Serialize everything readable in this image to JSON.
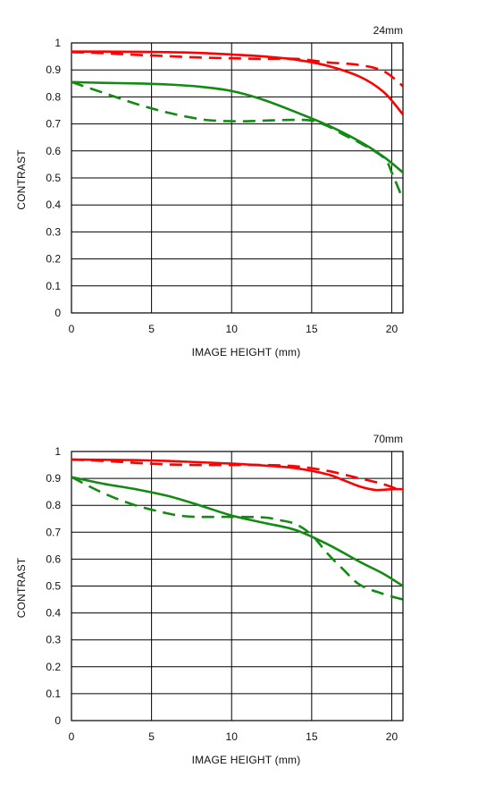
{
  "colors": {
    "sagittal_or_primary": "#ff0000",
    "secondary": "#138a13",
    "grid": "#000000"
  },
  "chart_data": [
    {
      "type": "line",
      "title": "24mm",
      "xlabel": "IMAGE HEIGHT (mm)",
      "ylabel": "CONTRAST",
      "xlim": [
        0,
        20.7
      ],
      "ylim": [
        0,
        1
      ],
      "xticks": [
        0,
        5,
        10,
        15,
        20
      ],
      "yticks": [
        0,
        0.1,
        0.2,
        0.3,
        0.4,
        0.5,
        0.6,
        0.7,
        0.8,
        0.9,
        1
      ],
      "grid": true,
      "series": [
        {
          "color": "#ff0000",
          "style": "solid",
          "x": [
            0,
            2,
            4,
            6,
            8,
            10,
            12,
            14,
            16,
            18,
            19.5,
            20.7
          ],
          "y": [
            0.968,
            0.968,
            0.967,
            0.966,
            0.963,
            0.957,
            0.95,
            0.938,
            0.915,
            0.875,
            0.818,
            0.735
          ]
        },
        {
          "color": "#ff0000",
          "style": "dashed",
          "x": [
            0,
            2,
            4,
            6,
            8,
            10,
            12,
            14,
            16,
            18,
            19.5,
            20.7
          ],
          "y": [
            0.966,
            0.962,
            0.956,
            0.951,
            0.946,
            0.943,
            0.941,
            0.941,
            0.928,
            0.918,
            0.895,
            0.84
          ]
        },
        {
          "color": "#138a13",
          "style": "solid",
          "x": [
            0,
            2,
            4,
            6,
            8,
            10,
            12,
            14,
            16,
            18,
            19.5,
            20.7
          ],
          "y": [
            0.855,
            0.852,
            0.85,
            0.846,
            0.838,
            0.822,
            0.789,
            0.744,
            0.695,
            0.635,
            0.578,
            0.52
          ]
        },
        {
          "color": "#138a13",
          "style": "dashed",
          "x": [
            0,
            2,
            4,
            6,
            8,
            9,
            10,
            11,
            12,
            13,
            14,
            15,
            16,
            17,
            18,
            19.5,
            20,
            20.7
          ],
          "y": [
            0.855,
            0.815,
            0.775,
            0.742,
            0.718,
            0.712,
            0.71,
            0.71,
            0.712,
            0.714,
            0.715,
            0.712,
            0.692,
            0.66,
            0.63,
            0.575,
            0.52,
            0.42
          ]
        }
      ]
    },
    {
      "type": "line",
      "title": "70mm",
      "xlabel": "IMAGE HEIGHT (mm)",
      "ylabel": "CONTRAST",
      "xlim": [
        0,
        20.7
      ],
      "ylim": [
        0,
        1
      ],
      "xticks": [
        0,
        5,
        10,
        15,
        20
      ],
      "yticks": [
        0,
        0.1,
        0.2,
        0.3,
        0.4,
        0.5,
        0.6,
        0.7,
        0.8,
        0.9,
        1
      ],
      "grid": true,
      "series": [
        {
          "color": "#ff0000",
          "style": "solid",
          "x": [
            0,
            2,
            4,
            6,
            8,
            10,
            12,
            14,
            16,
            17,
            18,
            19,
            20,
            20.7
          ],
          "y": [
            0.97,
            0.969,
            0.968,
            0.965,
            0.96,
            0.955,
            0.948,
            0.938,
            0.915,
            0.893,
            0.87,
            0.857,
            0.86,
            0.86
          ]
        },
        {
          "color": "#ff0000",
          "style": "dashed",
          "x": [
            0,
            2,
            4,
            6,
            8,
            10,
            12,
            14,
            16,
            18,
            19.5,
            20.7
          ],
          "y": [
            0.97,
            0.965,
            0.958,
            0.952,
            0.95,
            0.95,
            0.95,
            0.945,
            0.928,
            0.9,
            0.878,
            0.852
          ]
        },
        {
          "color": "#138a13",
          "style": "solid",
          "x": [
            0,
            2,
            4,
            6,
            8,
            10,
            12,
            14,
            16,
            18,
            19.5,
            20.7
          ],
          "y": [
            0.905,
            0.88,
            0.86,
            0.835,
            0.8,
            0.762,
            0.735,
            0.708,
            0.655,
            0.59,
            0.545,
            0.5
          ]
        },
        {
          "color": "#138a13",
          "style": "dashed",
          "x": [
            0,
            2,
            4,
            6,
            7,
            8,
            10,
            12,
            13,
            14,
            15,
            16,
            17,
            18,
            19.5,
            20.7
          ],
          "y": [
            0.905,
            0.845,
            0.8,
            0.77,
            0.76,
            0.757,
            0.757,
            0.755,
            0.745,
            0.73,
            0.69,
            0.62,
            0.56,
            0.505,
            0.47,
            0.45
          ]
        }
      ]
    }
  ]
}
